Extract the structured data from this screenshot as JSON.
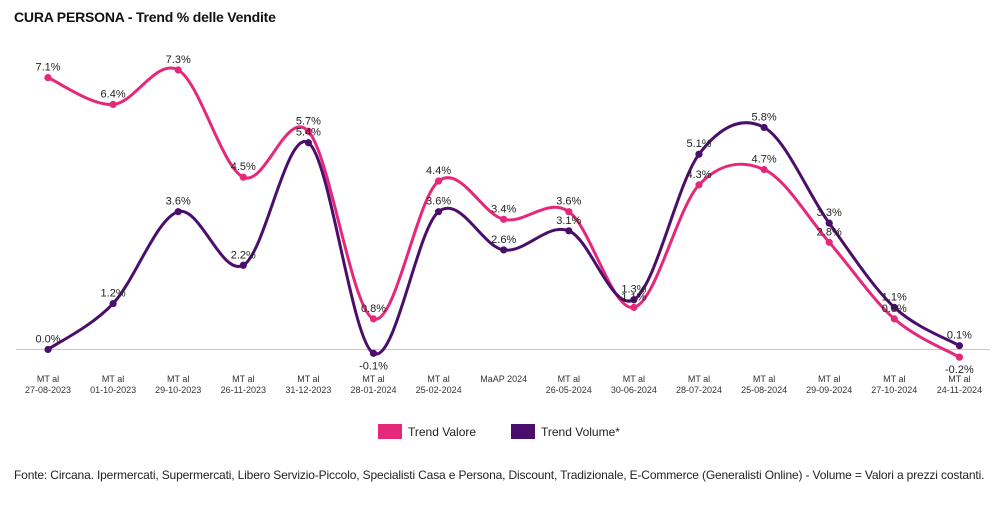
{
  "chart_data": {
    "type": "line",
    "title": "CURA PERSONA - Trend % delle Vendite",
    "categories": [
      [
        "MT al",
        "27-08-2023"
      ],
      [
        "MT al",
        "01-10-2023"
      ],
      [
        "MT al",
        "29-10-2023"
      ],
      [
        "MT al",
        "26-11-2023"
      ],
      [
        "MT al",
        "31-12-2023"
      ],
      [
        "MT al",
        "28-01-2024"
      ],
      [
        "MT al",
        "25-02-2024"
      ],
      [
        "MaAP 2024"
      ],
      [
        "MT al",
        "26-05-2024"
      ],
      [
        "MT al",
        "30-06-2024"
      ],
      [
        "MT al",
        "28-07-2024"
      ],
      [
        "MT al",
        "25-08-2024"
      ],
      [
        "MT al",
        "29-09-2024"
      ],
      [
        "MT al",
        "27-10-2024"
      ],
      [
        "MT al",
        "24-11-2024"
      ]
    ],
    "series": [
      {
        "name": "Trend Valore",
        "color": "#e6287a",
        "values": [
          7.1,
          6.4,
          7.3,
          4.5,
          5.7,
          0.8,
          4.4,
          3.4,
          3.6,
          1.1,
          4.3,
          4.7,
          2.8,
          0.8,
          -0.2
        ],
        "labels": [
          "7.1%",
          "6.4%",
          "7.3%",
          "4.5%",
          "5.7%",
          "0.8%",
          "4.4%",
          "3.4%",
          "3.6%",
          "1.1%",
          "4.3%",
          "4.7%",
          "2.8%",
          "0.8%",
          "-0.2%"
        ]
      },
      {
        "name": "Trend Volume*",
        "color": "#4b0f6b",
        "values": [
          0.0,
          1.2,
          3.6,
          2.2,
          5.4,
          -0.1,
          3.6,
          2.6,
          3.1,
          1.3,
          5.1,
          5.8,
          3.3,
          1.1,
          0.1
        ],
        "labels": [
          "0.0%",
          "1.2%",
          "3.6%",
          "2.2%",
          "5.4%",
          "-0.1%",
          "3.6%",
          "2.6%",
          "3.1%",
          "1.3%",
          "5.1%",
          "5.8%",
          "3.3%",
          "1.1%",
          "0.1%"
        ]
      }
    ],
    "ylim": [
      -0.2,
      7.3
    ],
    "grid": false,
    "legend_position": "bottom-center",
    "footnote": "Fonte: Circana. Ipermercati, Supermercati, Libero Servizio-Piccolo, Specialisti Casa e Persona, Discount, Tradizionale, E-Commerce (Generalisti Online) - Volume = Valori a prezzi costanti."
  }
}
